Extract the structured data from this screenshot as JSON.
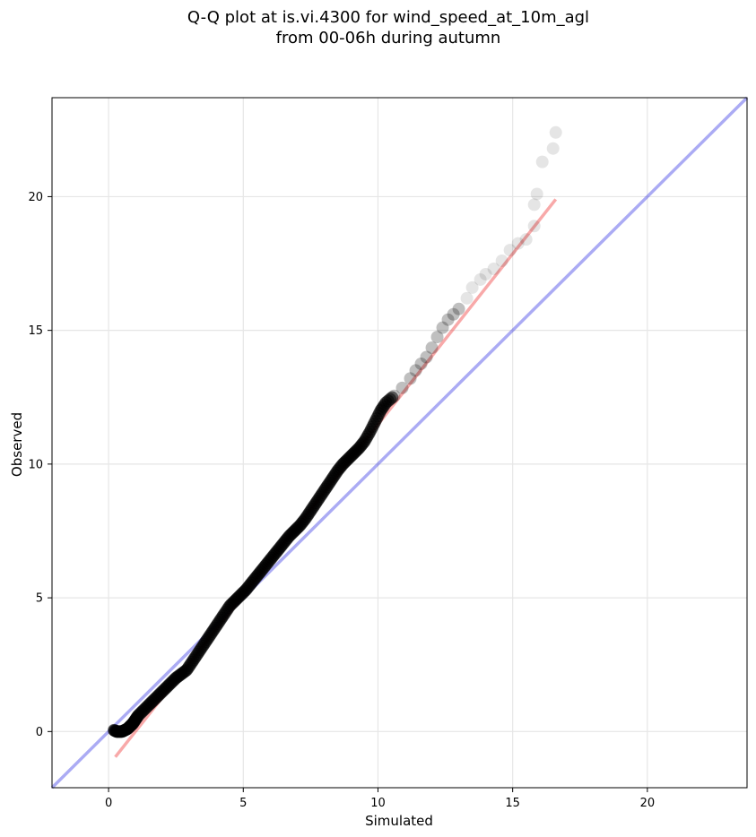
{
  "chart_data": {
    "type": "scatter",
    "title": "Q-Q plot at is.vi.4300 for wind_speed_at_10m_agl",
    "subtitle": "from 00-06h during autumn",
    "xlabel": "Simulated",
    "ylabel": "Observed",
    "xlim": [
      -2.1,
      23.7
    ],
    "ylim": [
      -2.1,
      23.7
    ],
    "xticks": [
      0,
      5,
      10,
      15,
      20
    ],
    "yticks": [
      0,
      5,
      10,
      15,
      20
    ],
    "grid": true,
    "identity_line": {
      "color": "#0000dd",
      "x": [
        -2.1,
        23.7
      ],
      "y": [
        -2.1,
        23.7
      ]
    },
    "fit_line": {
      "color": "#ee3333",
      "x": [
        0.25,
        16.6
      ],
      "y": [
        -0.95,
        19.9
      ]
    },
    "series": [
      {
        "color": "#000000",
        "quantiles": [
          [
            0.2,
            0.05
          ],
          [
            0.3,
            0.0
          ],
          [
            0.4,
            0.0
          ],
          [
            0.5,
            0.0
          ],
          [
            0.6,
            0.05
          ],
          [
            0.7,
            0.1
          ],
          [
            0.8,
            0.2
          ],
          [
            0.9,
            0.3
          ],
          [
            1.0,
            0.45
          ],
          [
            1.1,
            0.6
          ],
          [
            1.3,
            0.8
          ],
          [
            1.5,
            1.0
          ],
          [
            1.7,
            1.2
          ],
          [
            1.9,
            1.4
          ],
          [
            2.1,
            1.6
          ],
          [
            2.3,
            1.8
          ],
          [
            2.5,
            2.0
          ],
          [
            2.7,
            2.15
          ],
          [
            2.9,
            2.3
          ],
          [
            3.1,
            2.6
          ],
          [
            3.3,
            2.9
          ],
          [
            3.5,
            3.2
          ],
          [
            3.7,
            3.5
          ],
          [
            3.9,
            3.8
          ],
          [
            4.1,
            4.1
          ],
          [
            4.3,
            4.4
          ],
          [
            4.5,
            4.7
          ],
          [
            4.7,
            4.9
          ],
          [
            4.9,
            5.1
          ],
          [
            5.1,
            5.3
          ],
          [
            5.3,
            5.55
          ],
          [
            5.5,
            5.8
          ],
          [
            5.7,
            6.05
          ],
          [
            5.9,
            6.3
          ],
          [
            6.1,
            6.55
          ],
          [
            6.3,
            6.8
          ],
          [
            6.5,
            7.05
          ],
          [
            6.7,
            7.3
          ],
          [
            6.9,
            7.5
          ],
          [
            7.1,
            7.7
          ],
          [
            7.3,
            7.95
          ],
          [
            7.5,
            8.25
          ],
          [
            7.7,
            8.55
          ],
          [
            7.9,
            8.85
          ],
          [
            8.1,
            9.15
          ],
          [
            8.3,
            9.45
          ],
          [
            8.5,
            9.75
          ],
          [
            8.7,
            10.0
          ],
          [
            8.9,
            10.2
          ],
          [
            9.1,
            10.4
          ],
          [
            9.3,
            10.6
          ],
          [
            9.5,
            10.85
          ],
          [
            9.7,
            11.2
          ],
          [
            9.9,
            11.6
          ],
          [
            10.1,
            12.0
          ],
          [
            10.3,
            12.3
          ],
          [
            10.6,
            12.55
          ],
          [
            10.9,
            12.85
          ],
          [
            11.2,
            13.2
          ],
          [
            11.4,
            13.5
          ],
          [
            11.6,
            13.75
          ],
          [
            11.8,
            14.0
          ],
          [
            12.0,
            14.35
          ],
          [
            12.2,
            14.75
          ],
          [
            12.4,
            15.1
          ],
          [
            12.6,
            15.4
          ],
          [
            12.8,
            15.6
          ],
          [
            13.0,
            15.8
          ],
          [
            13.3,
            16.2
          ],
          [
            13.5,
            16.6
          ],
          [
            13.8,
            16.9
          ],
          [
            14.0,
            17.1
          ],
          [
            14.3,
            17.3
          ],
          [
            14.6,
            17.6
          ],
          [
            14.9,
            18.0
          ],
          [
            15.2,
            18.25
          ],
          [
            15.5,
            18.4
          ],
          [
            15.8,
            18.9
          ],
          [
            15.8,
            19.7
          ],
          [
            15.9,
            20.1
          ],
          [
            16.1,
            21.3
          ],
          [
            16.5,
            21.8
          ],
          [
            16.6,
            22.4
          ]
        ]
      }
    ]
  }
}
